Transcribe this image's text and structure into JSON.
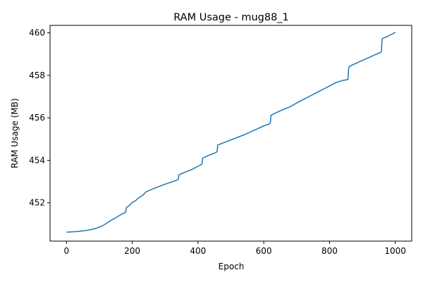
{
  "chart_data": {
    "type": "line",
    "title": "RAM Usage - mug88_1",
    "xlabel": "Epoch",
    "ylabel": "RAM Usage (MB)",
    "xlim": [
      -50,
      1050
    ],
    "ylim": [
      450.2,
      460.35
    ],
    "xticks": [
      0,
      200,
      400,
      600,
      800,
      1000
    ],
    "yticks": [
      452,
      454,
      456,
      458,
      460
    ],
    "xtick_labels": [
      "0",
      "200",
      "400",
      "600",
      "800",
      "1000"
    ],
    "ytick_labels": [
      "452",
      "454",
      "456",
      "458",
      "460"
    ],
    "grid": false,
    "line_color": "#1f77b4",
    "series": [
      {
        "x": [
          0,
          20,
          40,
          60,
          80,
          90,
          100,
          110,
          120,
          130,
          140,
          150,
          160,
          170,
          180,
          182,
          190,
          200,
          210,
          220,
          230,
          240,
          242,
          260,
          280,
          300,
          320,
          340,
          342,
          360,
          380,
          400,
          412,
          414,
          430,
          450,
          458,
          460,
          480,
          500,
          520,
          540,
          560,
          580,
          600,
          618,
          620,
          622,
          640,
          660,
          680,
          700,
          720,
          740,
          760,
          780,
          800,
          820,
          840,
          856,
          858,
          860,
          880,
          900,
          920,
          940,
          956,
          958,
          960,
          980,
          1000
        ],
        "y": [
          450.62,
          450.64,
          450.66,
          450.7,
          450.76,
          450.8,
          450.86,
          450.92,
          451.02,
          451.12,
          451.22,
          451.3,
          451.4,
          451.48,
          451.56,
          451.78,
          451.86,
          452.02,
          452.1,
          452.24,
          452.34,
          452.48,
          452.52,
          452.64,
          452.76,
          452.88,
          452.98,
          453.1,
          453.32,
          453.44,
          453.56,
          453.72,
          453.82,
          454.1,
          454.22,
          454.34,
          454.4,
          454.72,
          454.84,
          454.96,
          455.08,
          455.2,
          455.34,
          455.48,
          455.62,
          455.72,
          455.78,
          456.12,
          456.26,
          456.4,
          456.52,
          456.7,
          456.86,
          457.02,
          457.18,
          457.34,
          457.5,
          457.66,
          457.76,
          457.8,
          458.3,
          458.42,
          458.56,
          458.7,
          458.84,
          458.98,
          459.08,
          459.14,
          459.72,
          459.86,
          460.02
        ]
      }
    ]
  }
}
